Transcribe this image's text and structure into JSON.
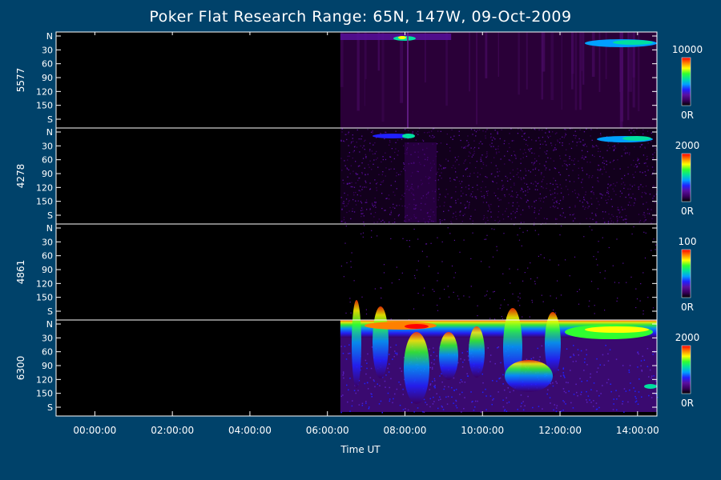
{
  "chart_data": {
    "type": "heatmap",
    "title": "Poker Flat Research Range: 65N, 147W, 09-Oct-2009",
    "xlabel": "Time UT",
    "x_range": [
      "23:00:00",
      "14:30:00"
    ],
    "x_ticks": [
      "00:00:00",
      "02:00:00",
      "04:00:00",
      "06:00:00",
      "08:00:00",
      "10:00:00",
      "12:00:00",
      "14:00:00"
    ],
    "y_range": [
      0,
      180
    ],
    "y_ticks": [
      "N",
      "30",
      "60",
      "90",
      "120",
      "150",
      "S"
    ],
    "data_start_time": "06:20:00",
    "panels": [
      {
        "name": "5577",
        "colorbar_max": "10000",
        "colorbar_min": "0R",
        "activity": "moderate"
      },
      {
        "name": "4278",
        "colorbar_max": "2000",
        "colorbar_min": "0R",
        "activity": "low"
      },
      {
        "name": "4861",
        "colorbar_max": "100",
        "colorbar_min": "0R",
        "activity": "noise"
      },
      {
        "name": "6300",
        "colorbar_max": "2000",
        "colorbar_min": "0R",
        "activity": "high"
      }
    ],
    "colormap": [
      "#000000",
      "#3a0060",
      "#5a10a0",
      "#2020ff",
      "#00a0ff",
      "#00e0a0",
      "#30ff30",
      "#ffff00",
      "#ff8000",
      "#ff0000"
    ]
  }
}
